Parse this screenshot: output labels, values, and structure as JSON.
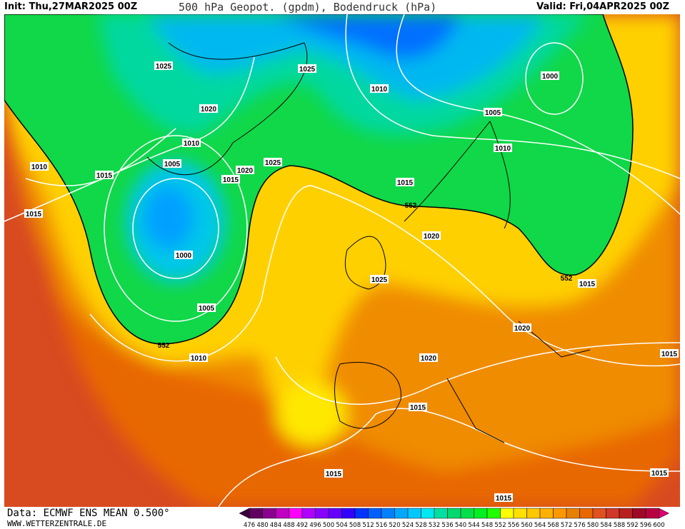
{
  "header": {
    "init": "Init: Thu,27MAR2025 00Z",
    "title": "500 hPa Geopot. (gpdm), Bodendruck (hPa)",
    "valid": "Valid: Fri,04APR2025 00Z"
  },
  "footer": {
    "source": "Data: ECMWF ENS MEAN 0.500°",
    "website": "WWW.WETTERZENTRALE.DE"
  },
  "colorbar": {
    "ticks": [
      "476",
      "480",
      "484",
      "488",
      "492",
      "496",
      "500",
      "504",
      "508",
      "512",
      "516",
      "520",
      "524",
      "528",
      "532",
      "536",
      "540",
      "544",
      "548",
      "552",
      "556",
      "560",
      "564",
      "568",
      "572",
      "576",
      "580",
      "584",
      "588",
      "592",
      "596",
      "600"
    ],
    "colors": [
      "#600060",
      "#8c0090",
      "#c000c0",
      "#ff00ff",
      "#b000ff",
      "#8800ff",
      "#6600ff",
      "#3300ff",
      "#0033ff",
      "#0060ff",
      "#0080ff",
      "#00a8ff",
      "#00c8ff",
      "#00e8f0",
      "#00e0a0",
      "#00d870",
      "#00e048",
      "#00f020",
      "#20ff00",
      "#ffff00",
      "#ffe000",
      "#ffc800",
      "#ffb000",
      "#ff9800",
      "#e88000",
      "#e86800",
      "#e05020",
      "#d03828",
      "#b82020",
      "#a00828",
      "#b80040"
    ],
    "under_color": "#3c003c",
    "over_color": "#e00070"
  },
  "isobar_labels": [
    "1025",
    "1025",
    "1010",
    "1000",
    "1020",
    "1005",
    "1010",
    "1010",
    "1005",
    "1025",
    "1020",
    "1015",
    "1010",
    "1015",
    "1015",
    "1015",
    "552",
    "1020",
    "1000",
    "1025",
    "552",
    "1015",
    "1005",
    "552",
    "1010",
    "1020",
    "1020",
    "1015",
    "1015",
    "1015",
    "1015",
    "1015"
  ]
}
